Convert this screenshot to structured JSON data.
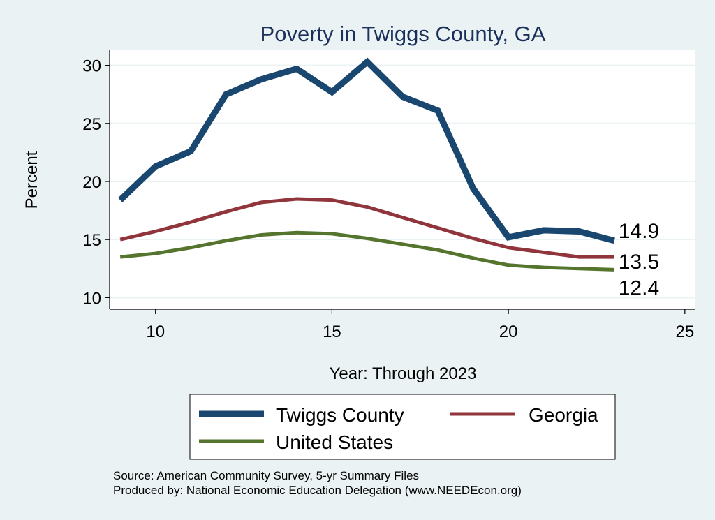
{
  "chart_data": {
    "type": "line",
    "title": "Poverty in Twiggs County, GA",
    "xlabel": "Year: Through 2023",
    "ylabel": "Percent",
    "xlim": [
      8.7,
      25.3
    ],
    "ylim": [
      9.0,
      31.3
    ],
    "xticks": [
      10,
      15,
      20,
      25
    ],
    "yticks": [
      10,
      15,
      20,
      25,
      30
    ],
    "grid": true,
    "legend_position": "bottom",
    "series": [
      {
        "name": "Twiggs County",
        "color": "#1a476f",
        "x": [
          9,
          10,
          11,
          12,
          13,
          14,
          15,
          16,
          17,
          18,
          19,
          20,
          21,
          22,
          23
        ],
        "values": [
          18.4,
          21.3,
          22.6,
          27.5,
          28.8,
          29.7,
          27.7,
          30.3,
          27.3,
          26.1,
          19.4,
          15.2,
          15.8,
          15.7,
          14.9
        ],
        "end_label": "14.9"
      },
      {
        "name": "Georgia",
        "color": "#90353b",
        "x": [
          9,
          10,
          11,
          12,
          13,
          14,
          15,
          16,
          17,
          18,
          19,
          20,
          21,
          22,
          23
        ],
        "values": [
          15.0,
          15.7,
          16.5,
          17.4,
          18.2,
          18.5,
          18.4,
          17.8,
          16.9,
          16.0,
          15.1,
          14.3,
          13.9,
          13.5,
          13.5
        ],
        "end_label": "13.5"
      },
      {
        "name": "United States",
        "color": "#55752f",
        "x": [
          9,
          10,
          11,
          12,
          13,
          14,
          15,
          16,
          17,
          18,
          19,
          20,
          21,
          22,
          23
        ],
        "values": [
          13.5,
          13.8,
          14.3,
          14.9,
          15.4,
          15.6,
          15.5,
          15.1,
          14.6,
          14.1,
          13.4,
          12.8,
          12.6,
          12.5,
          12.4
        ],
        "end_label": "12.4"
      }
    ]
  },
  "footer": {
    "source": "Source: American Community Survey, 5-yr Summary Files",
    "produced_by": "Produced by: National Economic Education Delegation (www.NEEDEcon.org)"
  }
}
